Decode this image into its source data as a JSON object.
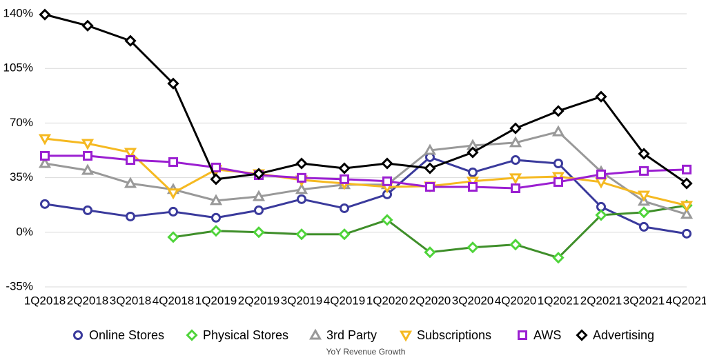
{
  "chart_data": {
    "type": "line",
    "title": "YoY Revenue Growth",
    "categories": [
      "1Q2018",
      "2Q2018",
      "3Q2018",
      "4Q2018",
      "1Q2019",
      "2Q2019",
      "3Q2019",
      "4Q2019",
      "1Q2020",
      "2Q2020",
      "3Q2020",
      "4Q2020",
      "1Q2021",
      "2Q2021",
      "3Q2021",
      "4Q2021"
    ],
    "ylim": [
      -35,
      140
    ],
    "yticks": [
      {
        "value": -35,
        "label": "-35%"
      },
      {
        "value": 0,
        "label": "0%"
      },
      {
        "value": 35,
        "label": "35%"
      },
      {
        "value": 70,
        "label": "70%"
      },
      {
        "value": 105,
        "label": "105%"
      },
      {
        "value": 140,
        "label": "140%"
      }
    ],
    "grid": true,
    "legend": "bottom",
    "series": [
      {
        "name": "Online Stores",
        "color": "#3a3a9c",
        "marker": "circle",
        "values": [
          18.1,
          14.1,
          10.1,
          13.2,
          9.3,
          14.1,
          21.2,
          15.4,
          24.3,
          48.1,
          38.4,
          46.3,
          44.1,
          16.3,
          3.5,
          -0.9
        ]
      },
      {
        "name": "Physical Stores",
        "color": "#3f8f2a",
        "marker_color": "#4fd43a",
        "marker": "diamond",
        "values": [
          null,
          null,
          null,
          -3.1,
          0.9,
          0,
          -1.3,
          -1.3,
          7.9,
          -12.8,
          -9.7,
          -7.9,
          -16.3,
          11.0,
          12.8,
          17.2
        ]
      },
      {
        "name": "3rd Party",
        "color": "#999999",
        "marker": "triangle-up",
        "values": [
          44.1,
          39.7,
          31.3,
          27.4,
          20.3,
          22.9,
          27.4,
          30.5,
          30.5,
          52.5,
          55.6,
          57.4,
          64.4,
          38.8,
          19.9,
          11.5
        ]
      },
      {
        "name": "Subscriptions",
        "color": "#f5b921",
        "marker": "triangle-down",
        "values": [
          60.0,
          56.9,
          51.2,
          25.2,
          40.2,
          37.5,
          33.5,
          31.3,
          29.1,
          29.6,
          32.7,
          34.9,
          35.7,
          32.2,
          23.8,
          17.2
        ]
      },
      {
        "name": "AWS",
        "color": "#9b1fd1",
        "marker": "square",
        "values": [
          49.0,
          49.0,
          46.3,
          45.0,
          41.5,
          36.6,
          34.9,
          34.0,
          32.7,
          29.1,
          29.1,
          28.2,
          32.2,
          37.1,
          39.3,
          40.2
        ]
      },
      {
        "name": "Advertising",
        "color": "#000000",
        "marker": "diamond",
        "values": [
          139.5,
          132.4,
          122.7,
          95.3,
          34.0,
          37.5,
          44.1,
          41.0,
          44.1,
          41.0,
          51.2,
          66.6,
          77.7,
          86.9,
          50.3,
          31.3
        ]
      }
    ]
  }
}
